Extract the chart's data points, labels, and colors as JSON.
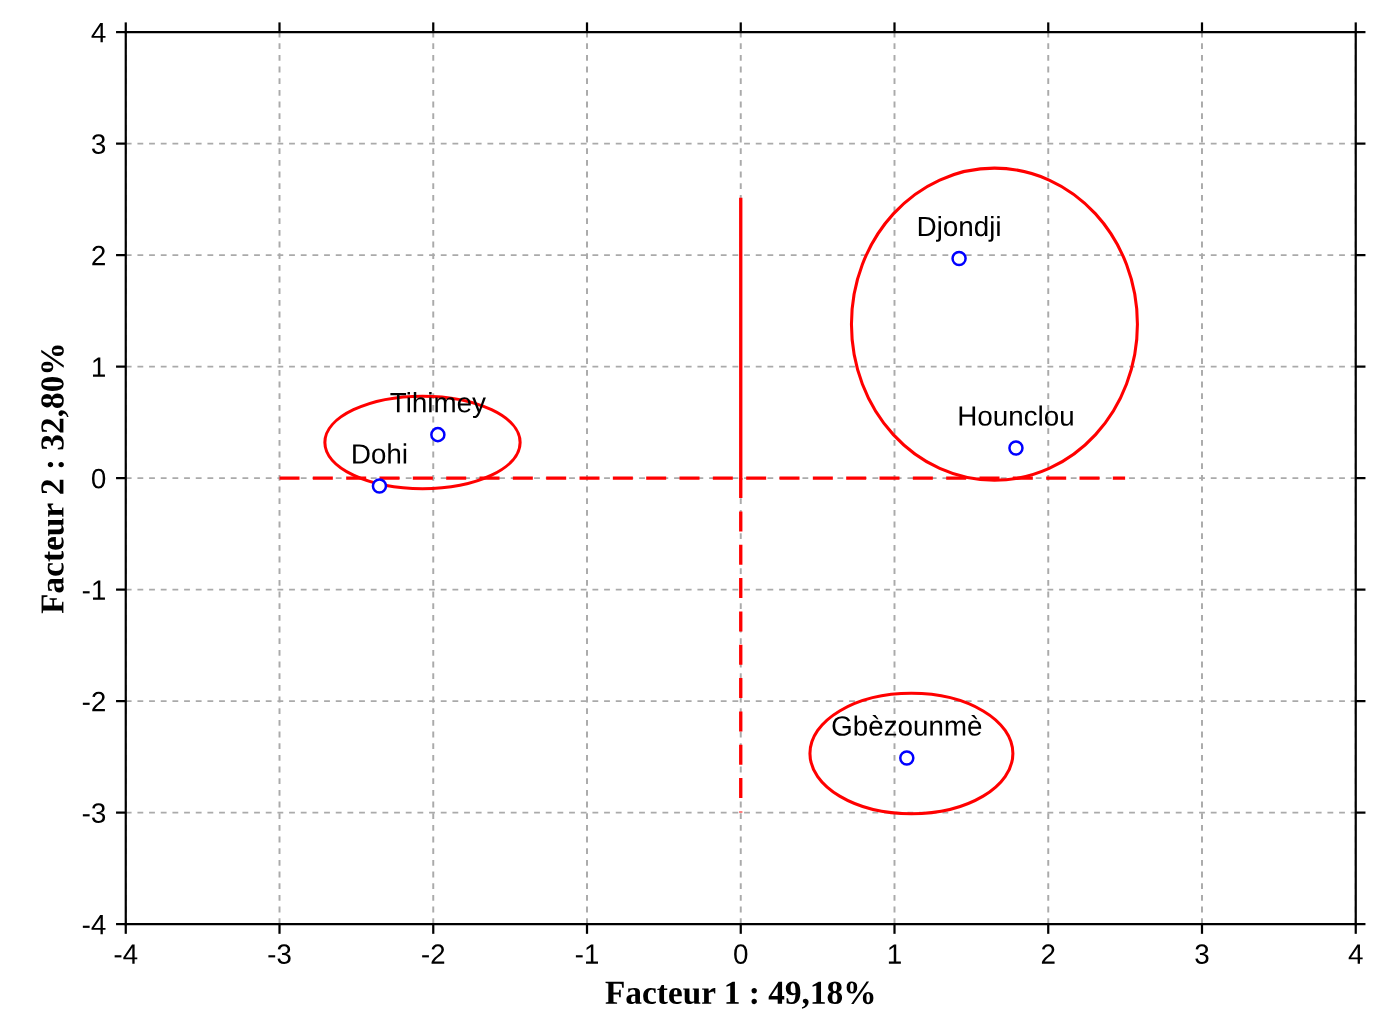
{
  "chart_data": {
    "type": "scatter",
    "xlabel": "Facteur 1 : 49,18%",
    "ylabel": "Facteur 2 : 32,80%",
    "xlim": [
      -4,
      4
    ],
    "ylim": [
      -4,
      4
    ],
    "xticks": [
      -4,
      -3,
      -2,
      -1,
      0,
      1,
      2,
      3,
      4
    ],
    "yticks": [
      -4,
      -3,
      -2,
      -1,
      0,
      1,
      2,
      3,
      4
    ],
    "grid": true,
    "series": [
      {
        "color": "#0000ff",
        "marker": "circle",
        "x": [
          1.42,
          1.79,
          -1.97,
          -2.35,
          1.08
        ],
        "values": [
          1.97,
          0.27,
          0.39,
          -0.07,
          -2.51
        ],
        "value_labels": [
          "Djondji",
          "Hounclou",
          "Tihimey",
          "Dohi",
          "Gbèzounmè"
        ]
      },
      {
        "type": "line",
        "color": "#ff0000",
        "marker": "none",
        "line_style": "dashed",
        "x": [
          -3,
          2.5
        ],
        "values": [
          0,
          0
        ]
      },
      {
        "type": "line",
        "color": "#ff0000",
        "marker": "none",
        "line_style": "solid",
        "x": [
          0,
          0
        ],
        "values": [
          2.5,
          0
        ]
      },
      {
        "type": "line",
        "color": "#ff0000",
        "marker": "none",
        "line_style": "dashed",
        "x": [
          0,
          0
        ],
        "values": [
          0,
          -3
        ]
      }
    ]
  }
}
